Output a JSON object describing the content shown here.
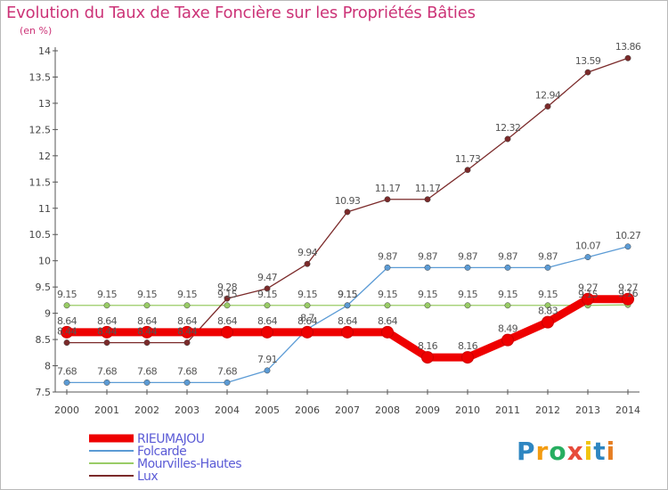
{
  "title": "Evolution du Taux de Taxe Foncière sur les Propriétés Bâties",
  "unit_label": "(en %)",
  "logo": {
    "letters": [
      "P",
      "r",
      "o",
      "x",
      "i",
      "t",
      "i"
    ],
    "colors": [
      "#2e86c1",
      "#f39c12",
      "#27ae60",
      "#e74c3c",
      "#f1c40f",
      "#2e86c1",
      "#e67e22"
    ]
  },
  "chart_data": {
    "type": "line",
    "x": [
      "2000",
      "2001",
      "2002",
      "2003",
      "2004",
      "2005",
      "2006",
      "2007",
      "2008",
      "2009",
      "2010",
      "2011",
      "2012",
      "2013",
      "2014"
    ],
    "ylim": [
      7.5,
      14
    ],
    "yticks": [
      "7.5",
      "8",
      "8.5",
      "9",
      "9.5",
      "10",
      "10.5",
      "11",
      "11.5",
      "12",
      "12.5",
      "13",
      "13.5",
      "14"
    ],
    "grid": false,
    "legend_position": "bottom-left",
    "series": [
      {
        "name": "RIEUMAJOU",
        "color": "#ee0000",
        "values": [
          8.64,
          8.64,
          8.64,
          8.64,
          8.64,
          8.64,
          8.64,
          8.64,
          8.64,
          8.16,
          8.16,
          8.49,
          8.83,
          9.27,
          9.27
        ],
        "labels": [
          "8.64",
          "8.64",
          "8.64",
          "8.64",
          "8.64",
          "8.64",
          "8.64",
          "8.64",
          "8.64",
          "8.16",
          "8.16",
          "8.49",
          "8.83",
          "9.27",
          "9.27"
        ]
      },
      {
        "name": "Folcarde",
        "color": "#5b9bd5",
        "values": [
          7.68,
          7.68,
          7.68,
          7.68,
          7.68,
          7.91,
          8.7,
          9.15,
          9.87,
          9.87,
          9.87,
          9.87,
          9.87,
          10.07,
          10.27
        ],
        "labels": [
          "7.68",
          "7.68",
          "7.68",
          "7.68",
          "7.68",
          "7.91",
          "8.7",
          "9.15",
          "9.87",
          "9.87",
          "9.87",
          "9.87",
          "9.87",
          "10.07",
          "10.27"
        ]
      },
      {
        "name": "Mourvilles-Hautes",
        "color": "#99cc66",
        "values": [
          9.15,
          9.15,
          9.15,
          9.15,
          9.15,
          9.15,
          9.15,
          9.15,
          9.15,
          9.15,
          9.15,
          9.15,
          9.15,
          9.15,
          9.16
        ],
        "labels": [
          "9.15",
          "9.15",
          "9.15",
          "9.15",
          "9.15",
          "9.15",
          "9.15",
          "9.15",
          "9.15",
          "9.15",
          "9.15",
          "9.15",
          "9.15",
          "9.15",
          "9.16"
        ]
      },
      {
        "name": "Lux",
        "color": "#7b2a2a",
        "values": [
          8.44,
          8.44,
          8.44,
          8.44,
          9.28,
          9.47,
          9.94,
          10.93,
          11.17,
          11.17,
          11.73,
          12.32,
          12.94,
          13.59,
          13.86
        ],
        "labels": [
          "8.44",
          "8.44",
          "8.44",
          "8.44",
          "9.28",
          "9.47",
          "9.94",
          "10.93",
          "11.17",
          "11.17",
          "11.73",
          "12.32",
          "12.94",
          "13.59",
          "13.86"
        ]
      }
    ]
  }
}
